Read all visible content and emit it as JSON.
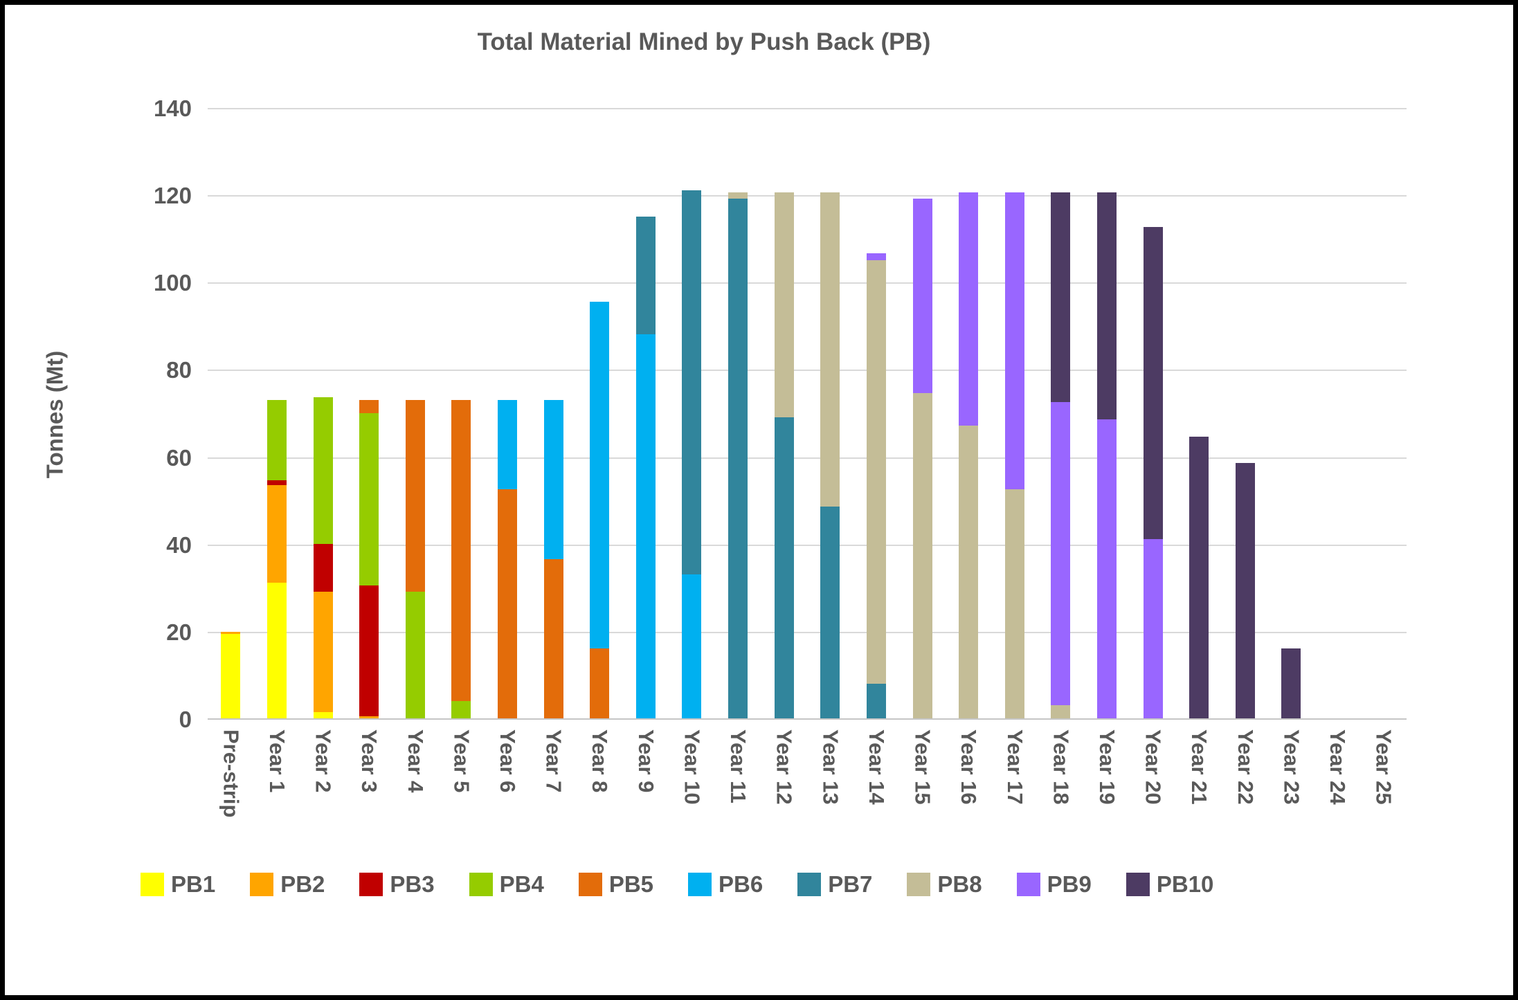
{
  "title": "Total Material Mined by Push Back (PB)",
  "y_axis": {
    "title": "Tonnes (Mt)"
  },
  "chart_data": {
    "type": "bar",
    "subtype": "stacked-column",
    "title": "Total Material Mined by Push Back (PB)",
    "xlabel": "",
    "ylabel": "Tonnes (Mt)",
    "ylim": [
      0,
      140
    ],
    "y_ticks": [
      0,
      20,
      40,
      60,
      80,
      100,
      120,
      140
    ],
    "grid": "horizontal",
    "legend_position": "bottom",
    "colors": {
      "gridline": "#d9d9d9",
      "axis_text": "#595959",
      "title_text": "#595959",
      "background": "#ffffff",
      "frame_border": "#000000"
    },
    "categories": [
      "Pre-strip",
      "Year 1",
      "Year 2",
      "Year 3",
      "Year 4",
      "Year 5",
      "Year 6",
      "Year 7",
      "Year 8",
      "Year 9",
      "Year 10",
      "Year 11",
      "Year 12",
      "Year 13",
      "Year 14",
      "Year 15",
      "Year 16",
      "Year 17",
      "Year 18",
      "Year 19",
      "Year 20",
      "Year 21",
      "Year 22",
      "Year 23",
      "Year 24",
      "Year 25"
    ],
    "series": [
      {
        "name": "PB1",
        "color": "#FFFF00",
        "values": [
          19.3,
          31,
          1.5,
          0,
          0,
          0,
          0,
          0,
          0,
          0,
          0,
          0,
          0,
          0,
          0,
          0,
          0,
          0,
          0,
          0,
          0,
          0,
          0,
          0,
          0,
          0
        ]
      },
      {
        "name": "PB2",
        "color": "#FFA500",
        "values": [
          0.5,
          22.5,
          27.5,
          0.5,
          0,
          0,
          0,
          0,
          0,
          0,
          0,
          0,
          0,
          0,
          0,
          0,
          0,
          0,
          0,
          0,
          0,
          0,
          0,
          0,
          0,
          0
        ]
      },
      {
        "name": "PB3",
        "color": "#C00000",
        "values": [
          0,
          1,
          11,
          30,
          0,
          0,
          0,
          0,
          0,
          0,
          0,
          0,
          0,
          0,
          0,
          0,
          0,
          0,
          0,
          0,
          0,
          0,
          0,
          0,
          0,
          0
        ]
      },
      {
        "name": "PB4",
        "color": "#95CC00",
        "values": [
          0,
          18.5,
          33.5,
          39.5,
          29,
          4,
          0,
          0,
          0,
          0,
          0,
          0,
          0,
          0,
          0,
          0,
          0,
          0,
          0,
          0,
          0,
          0,
          0,
          0,
          0,
          0
        ]
      },
      {
        "name": "PB5",
        "color": "#E36C0A",
        "values": [
          0,
          0,
          0,
          3,
          44,
          69,
          52.5,
          36.5,
          16,
          0,
          0,
          0,
          0,
          0,
          0,
          0,
          0,
          0,
          0,
          0,
          0,
          0,
          0,
          0,
          0,
          0
        ]
      },
      {
        "name": "PB6",
        "color": "#00B0F0",
        "values": [
          0,
          0,
          0,
          0,
          0,
          0,
          20.5,
          36.5,
          79.5,
          88,
          33,
          0,
          0,
          0,
          0,
          0,
          0,
          0,
          0,
          0,
          0,
          0,
          0,
          0,
          0,
          0
        ]
      },
      {
        "name": "PB7",
        "color": "#31859C",
        "values": [
          0,
          0,
          0,
          0,
          0,
          0,
          0,
          0,
          0,
          27,
          88,
          119,
          69,
          48.5,
          8,
          0,
          0,
          0,
          0,
          0,
          0,
          0,
          0,
          0,
          0,
          0
        ]
      },
      {
        "name": "PB8",
        "color": "#C4BD97",
        "values": [
          0,
          0,
          0,
          0,
          0,
          0,
          0,
          0,
          0,
          0,
          0,
          1.5,
          51.5,
          72,
          97,
          74.5,
          67,
          52.5,
          3,
          0,
          0,
          0,
          0,
          0,
          0,
          0
        ]
      },
      {
        "name": "PB9",
        "color": "#9966FF",
        "values": [
          0,
          0,
          0,
          0,
          0,
          0,
          0,
          0,
          0,
          0,
          0,
          0,
          0,
          0,
          1.5,
          44.5,
          53.5,
          68,
          69.5,
          68.5,
          41,
          0,
          0,
          0,
          0,
          0
        ]
      },
      {
        "name": "PB10",
        "color": "#4D3B63",
        "values": [
          0,
          0,
          0,
          0,
          0,
          0,
          0,
          0,
          0,
          0,
          0,
          0,
          0,
          0,
          0,
          0,
          0,
          0,
          48,
          52,
          71.5,
          64.5,
          58.5,
          16,
          0,
          0
        ]
      }
    ]
  }
}
